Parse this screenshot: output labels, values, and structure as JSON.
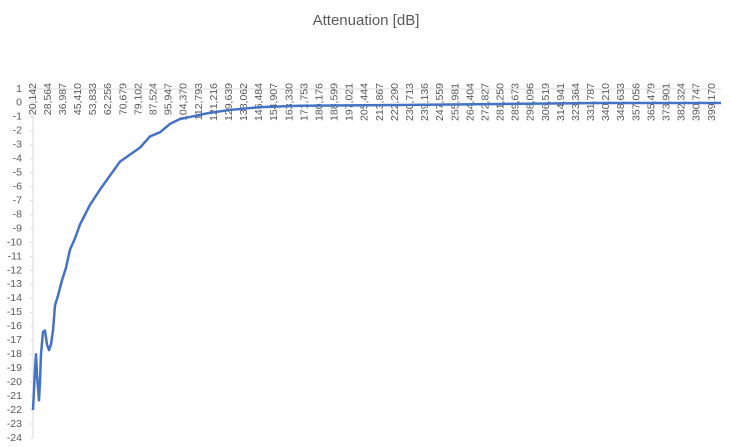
{
  "chart_data": {
    "type": "line",
    "title": "Attenuation [dB]",
    "x": [
      20142,
      21258,
      21817,
      22375,
      23491,
      24049,
      24608,
      25724,
      26840,
      27957,
      29073,
      30190,
      31306,
      32422,
      34097,
      36330,
      38563,
      40796,
      43586,
      46377,
      51959,
      57541,
      63123,
      68705,
      74287,
      79869,
      85451,
      91033,
      96615,
      102197,
      107779,
      118943,
      130107,
      146853,
      169181,
      225001,
      280821,
      336641,
      404184
    ],
    "series": [
      {
        "name": "Attenuation [dB]",
        "color": "#4472c4",
        "values": [
          -22,
          -19.1,
          -18,
          -19.5,
          -21.3,
          -19.9,
          -18,
          -16.4,
          -16.3,
          -17.3,
          -17.7,
          -17.3,
          -16.3,
          -14.5,
          -13.8,
          -12.7,
          -11.8,
          -10.5,
          -9.7,
          -8.7,
          -7.3,
          -6.2,
          -5.2,
          -4.2,
          -3.7,
          -3.2,
          -2.4,
          -2.1,
          -1.5,
          -1.15,
          -1.0,
          -0.7,
          -0.5,
          -0.3,
          -0.2,
          -0.15,
          -0.07,
          0,
          0
        ]
      }
    ],
    "xlim": [
      20142,
      404200
    ],
    "xticks": [
      {
        "value": 20142,
        "label": "20,142"
      },
      {
        "value": 28564,
        "label": "28,564"
      },
      {
        "value": 36987,
        "label": "36,987"
      },
      {
        "value": 45410,
        "label": "45,410"
      },
      {
        "value": 53833,
        "label": "53,833"
      },
      {
        "value": 62256,
        "label": "62,256"
      },
      {
        "value": 70679,
        "label": "70,679"
      },
      {
        "value": 79102,
        "label": "79,102"
      },
      {
        "value": 87524,
        "label": "87,524"
      },
      {
        "value": 95947,
        "label": "95,947"
      },
      {
        "value": 104370,
        "label": "104,370"
      },
      {
        "value": 112793,
        "label": "112,793"
      },
      {
        "value": 121216,
        "label": "121,216"
      },
      {
        "value": 129639,
        "label": "129,639"
      },
      {
        "value": 138062,
        "label": "138,062"
      },
      {
        "value": 146484,
        "label": "146,484"
      },
      {
        "value": 154907,
        "label": "154,907"
      },
      {
        "value": 163330,
        "label": "163,330"
      },
      {
        "value": 171753,
        "label": "171,753"
      },
      {
        "value": 180176,
        "label": "180,176"
      },
      {
        "value": 188599,
        "label": "188,599"
      },
      {
        "value": 197021,
        "label": "197,021"
      },
      {
        "value": 205444,
        "label": "205,444"
      },
      {
        "value": 213867,
        "label": "213,867"
      },
      {
        "value": 222290,
        "label": "222,290"
      },
      {
        "value": 230713,
        "label": "230,713"
      },
      {
        "value": 239136,
        "label": "239,136"
      },
      {
        "value": 247559,
        "label": "247,559"
      },
      {
        "value": 255981,
        "label": "255,981"
      },
      {
        "value": 264404,
        "label": "264,404"
      },
      {
        "value": 272827,
        "label": "272,827"
      },
      {
        "value": 281250,
        "label": "281,250"
      },
      {
        "value": 289673,
        "label": "289,673"
      },
      {
        "value": 298096,
        "label": "298,096"
      },
      {
        "value": 306519,
        "label": "306,519"
      },
      {
        "value": 314941,
        "label": "314,941"
      },
      {
        "value": 323364,
        "label": "323,364"
      },
      {
        "value": 331787,
        "label": "331,787"
      },
      {
        "value": 340210,
        "label": "340,210"
      },
      {
        "value": 348633,
        "label": "348,633"
      },
      {
        "value": 357056,
        "label": "357,056"
      },
      {
        "value": 365479,
        "label": "365,479"
      },
      {
        "value": 373901,
        "label": "373,901"
      },
      {
        "value": 382324,
        "label": "382,324"
      },
      {
        "value": 390747,
        "label": "390,747"
      },
      {
        "value": 399170,
        "label": "399,170"
      }
    ],
    "ylim": [
      -24,
      1
    ],
    "yticks": [
      1,
      0,
      -1,
      -2,
      -3,
      -4,
      -5,
      -6,
      -7,
      -8,
      -9,
      -10,
      -11,
      -12,
      -13,
      -14,
      -15,
      -16,
      -17,
      -18,
      -19,
      -20,
      -21,
      -22,
      -23,
      -24
    ]
  }
}
